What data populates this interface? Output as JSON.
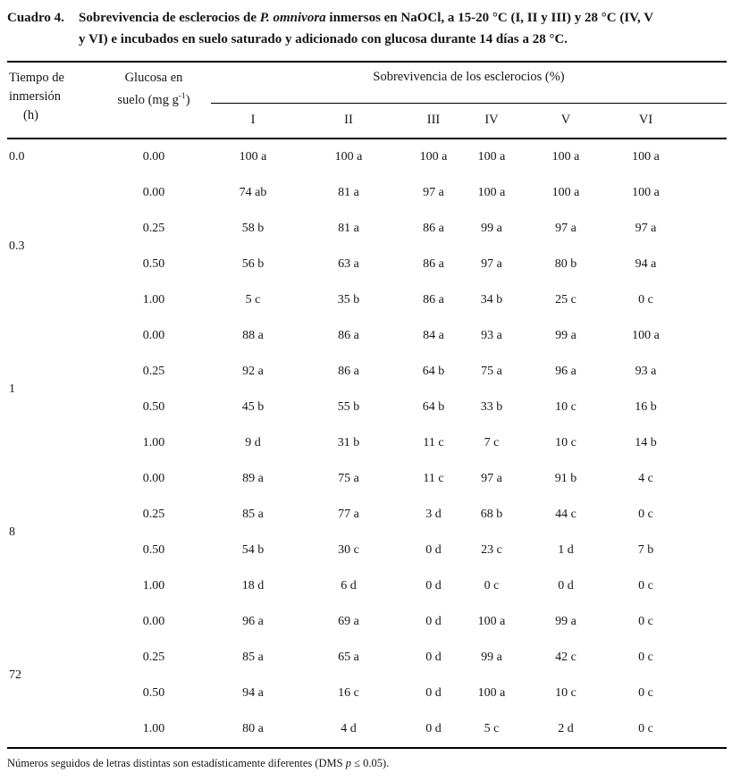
{
  "caption": {
    "label": "Cuadro 4.",
    "line1_prefix": "Sobrevivencia de esclerocios de ",
    "species": "P. omnivora",
    "line1_suffix": " inmersos en NaOCl, a 15-20 °C (I, II y III) y 28 °C (IV, V",
    "line2": "y VI) e incubados en suelo saturado y adicionado con glucosa durante 14 días a 28 °C."
  },
  "table": {
    "col_tiempo_header": [
      "Tiempo de",
      "inmersión",
      "(h)"
    ],
    "col_glucosa_header": {
      "line1": "Glucosa en",
      "line2_pre": "suelo (mg g",
      "sup": "-1",
      "line2_post": ")"
    },
    "span_header": "Sobrevivencia de los esclerocios (%)",
    "treatment_columns": [
      "I",
      "II",
      "III",
      "IV",
      "V",
      "VI"
    ],
    "groups": [
      {
        "tiempo": "0.0",
        "rows": [
          {
            "glucosa": "0.00",
            "values": [
              "100 a",
              "100 a",
              "100 a",
              "100 a",
              "100 a",
              "100 a"
            ]
          }
        ]
      },
      {
        "tiempo": "0.3",
        "rows": [
          {
            "glucosa": "0.00",
            "values": [
              "74 ab",
              "81 a",
              "97 a",
              "100 a",
              "100 a",
              "100 a"
            ]
          },
          {
            "glucosa": "0.25",
            "values": [
              "58 b",
              "81 a",
              "86 a",
              "99 a",
              "97 a",
              "97 a"
            ]
          },
          {
            "glucosa": "0.50",
            "values": [
              "56 b",
              "63 a",
              "86 a",
              "97 a",
              "80 b",
              "94 a"
            ]
          },
          {
            "glucosa": "1.00",
            "values": [
              "5 c",
              "35 b",
              "86 a",
              "34 b",
              "25 c",
              "0 c"
            ]
          }
        ]
      },
      {
        "tiempo": "1",
        "rows": [
          {
            "glucosa": "0.00",
            "values": [
              "88 a",
              "86 a",
              "84 a",
              "93 a",
              "99 a",
              "100 a"
            ]
          },
          {
            "glucosa": "0.25",
            "values": [
              "92 a",
              "86 a",
              "64 b",
              "75 a",
              "96 a",
              "93 a"
            ]
          },
          {
            "glucosa": "0.50",
            "values": [
              "45 b",
              "55 b",
              "64 b",
              "33 b",
              "10 c",
              "16 b"
            ]
          },
          {
            "glucosa": "1.00",
            "values": [
              "9 d",
              "31 b",
              "11 c",
              "7 c",
              "10 c",
              "14 b"
            ]
          }
        ]
      },
      {
        "tiempo": "8",
        "rows": [
          {
            "glucosa": "0.00",
            "values": [
              "89 a",
              "75 a",
              "11 c",
              "97 a",
              "91 b",
              "4 c"
            ]
          },
          {
            "glucosa": "0.25",
            "values": [
              "85 a",
              "77 a",
              "3 d",
              "68 b",
              "44 c",
              "0 c"
            ]
          },
          {
            "glucosa": "0.50",
            "values": [
              "54 b",
              "30 c",
              "0 d",
              "23 c",
              "1 d",
              "7 b"
            ]
          },
          {
            "glucosa": "1.00",
            "values": [
              "18 d",
              "6 d",
              "0 d",
              "0 c",
              "0 d",
              "0 c"
            ]
          }
        ]
      },
      {
        "tiempo": "72",
        "rows": [
          {
            "glucosa": "0.00",
            "values": [
              "96 a",
              "69 a",
              "0 d",
              "100 a",
              "99 a",
              "0 c"
            ]
          },
          {
            "glucosa": "0.25",
            "values": [
              "85 a",
              "65 a",
              "0 d",
              "99 a",
              "42 c",
              "0 c"
            ]
          },
          {
            "glucosa": "0.50",
            "values": [
              "94 a",
              "16 c",
              "0 d",
              "100 a",
              "10 c",
              "0 c"
            ]
          },
          {
            "glucosa": "1.00",
            "values": [
              "80 a",
              "4 d",
              "0 d",
              "5 c",
              "2 d",
              "0 c"
            ]
          }
        ]
      }
    ]
  },
  "footnote": {
    "pre": "Números seguidos de letras distintas son estadísticamente diferentes (DMS ",
    "italic": "p",
    "post": " ≤ 0.05)."
  }
}
